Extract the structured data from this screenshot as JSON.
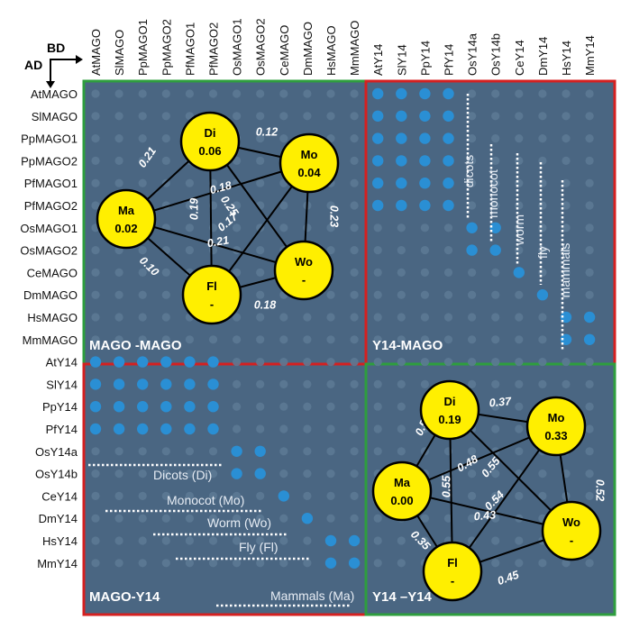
{
  "axes": {
    "bd": "BD",
    "ad": "AD"
  },
  "columns": [
    "AtMAGO",
    "SlMAGO",
    "PpMAGO1",
    "PpMAGO2",
    "PfMAGO1",
    "PfMAGO2",
    "OsMAGO1",
    "OsMAGO2",
    "CeMAGO",
    "DmMAGO",
    "HsMAGO",
    "MmMAGO",
    "AtY14",
    "SlY14",
    "PpY14",
    "PfY14",
    "OsY14a",
    "OsY14b",
    "CeY14",
    "DmY14",
    "HsY14",
    "MmY14"
  ],
  "rows": [
    "AtMAGO",
    "SlMAGO",
    "PpMAGO1",
    "PpMAGO2",
    "PfMAGO1",
    "PfMAGO2",
    "OsMAGO1",
    "OsMAGO2",
    "CeMAGO",
    "DmMAGO",
    "HsMAGO",
    "MmMAGO",
    "AtY14",
    "SlY14",
    "PpY14",
    "PfY14",
    "OsY14a",
    "OsY14b",
    "CeY14",
    "DmY14",
    "HsY14",
    "MmY14"
  ],
  "quadrants": [
    {
      "label": "MAGO -MAGO",
      "border": "#2e9e3e"
    },
    {
      "label": "Y14-MAGO",
      "border": "#d52020"
    },
    {
      "label": "MAGO-Y14",
      "border": "#d52020"
    },
    {
      "label": "Y14 –Y14",
      "border": "#2e9e3e"
    }
  ],
  "colors": {
    "plate": "#4a6682",
    "dot": "#5c7993",
    "blue": "#2a8fd4",
    "node": "#ffef00"
  },
  "groups_y14_mago": [
    "dicots",
    "monocot",
    "worm",
    "fly",
    "mammals"
  ],
  "groups_mago_y14": [
    "Dicots (Di)",
    "Monocot (Mo)",
    "Worm (Wo)",
    "Fly (Fl)",
    "Mammals (Ma)"
  ],
  "networks": [
    {
      "nodes": [
        {
          "abbr": "Di",
          "value": "0.06"
        },
        {
          "abbr": "Mo",
          "value": "0.04"
        },
        {
          "abbr": "Ma",
          "value": "0.02"
        },
        {
          "abbr": "Wo",
          "value": "-"
        },
        {
          "abbr": "Fl",
          "value": "-"
        }
      ],
      "edges": [
        "0.12",
        "0.21",
        "0.18",
        "0.25",
        "0.19",
        "0.17",
        "0.23",
        "0.21",
        "0.10",
        "0.18"
      ]
    },
    {
      "nodes": [
        {
          "abbr": "Di",
          "value": "0.19"
        },
        {
          "abbr": "Mo",
          "value": "0.33"
        },
        {
          "abbr": "Ma",
          "value": "0.00"
        },
        {
          "abbr": "Wo",
          "value": "-"
        },
        {
          "abbr": "Fl",
          "value": "-"
        }
      ],
      "edges": [
        "0.37",
        "0.50",
        "0.48",
        "0.55",
        "0.55",
        "0.54",
        "0.52",
        "0.43",
        "0.35",
        "0.45"
      ]
    }
  ]
}
